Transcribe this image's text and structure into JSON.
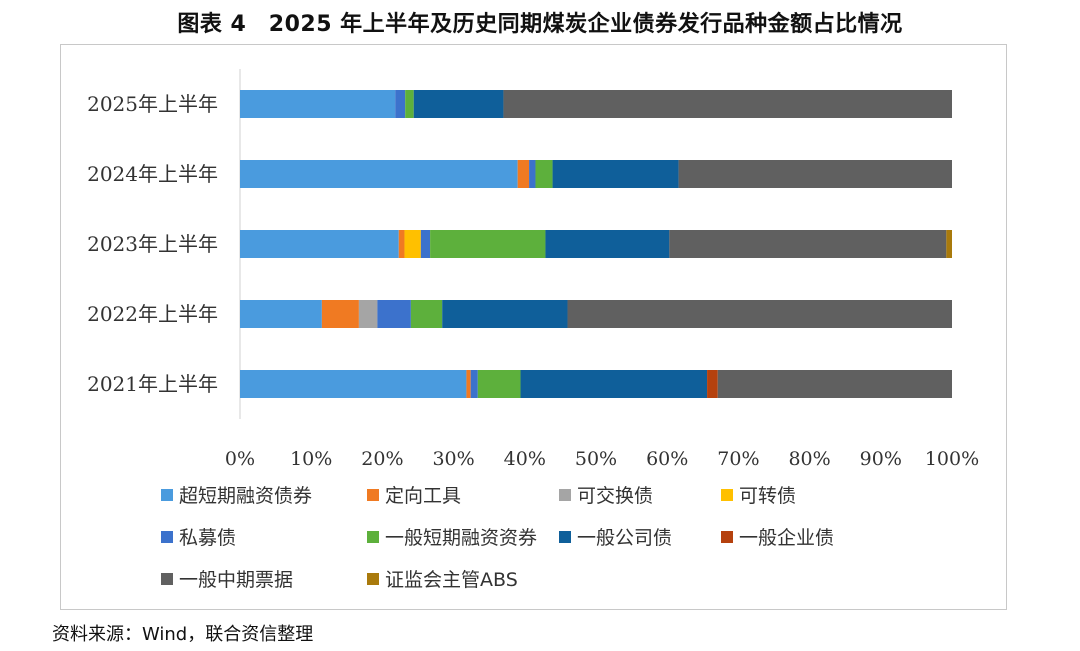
{
  "title": "图表 4　2025 年上半年及历史同期煤炭企业债券发行品种金额占比情况",
  "source": "资料来源：Wind，联合资信整理",
  "chart_data": {
    "type": "bar",
    "orientation": "horizontal",
    "stacked": true,
    "percent_stacked": true,
    "categories": [
      "2025年上半年",
      "2024年上半年",
      "2023年上半年",
      "2022年上半年",
      "2021年上半年"
    ],
    "xlim": [
      0,
      100
    ],
    "x_ticks": [
      "0%",
      "10%",
      "20%",
      "30%",
      "40%",
      "50%",
      "60%",
      "70%",
      "80%",
      "90%",
      "100%"
    ],
    "grid": false,
    "legend_position": "bottom",
    "series": [
      {
        "name": "超短期融资债券",
        "color": "#4A9BDE",
        "values": [
          21.8,
          39.0,
          22.3,
          11.5,
          31.8
        ]
      },
      {
        "name": "定向工具",
        "color": "#F07A22",
        "values": [
          0,
          1.6,
          0.8,
          5.2,
          0.6
        ]
      },
      {
        "name": "可交换债",
        "color": "#A5A5A5",
        "values": [
          0,
          0,
          0,
          2.6,
          0
        ]
      },
      {
        "name": "可转债",
        "color": "#FFC000",
        "values": [
          0,
          0,
          2.3,
          0,
          0
        ]
      },
      {
        "name": "私募债",
        "color": "#3C72CC",
        "values": [
          1.4,
          0.9,
          1.3,
          4.7,
          1.0
        ]
      },
      {
        "name": "一般短期融资资券",
        "color": "#5DB03C",
        "values": [
          1.2,
          2.4,
          16.2,
          4.4,
          6.0
        ]
      },
      {
        "name": "一般公司债",
        "color": "#0F5F9A",
        "values": [
          12.6,
          17.7,
          17.4,
          17.6,
          26.2
        ]
      },
      {
        "name": "一般企业债",
        "color": "#B5410E",
        "values": [
          0,
          0,
          0,
          0,
          1.5
        ]
      },
      {
        "name": "一般中期票据",
        "color": "#606060",
        "values": [
          63.0,
          38.4,
          38.9,
          54.0,
          32.9
        ]
      },
      {
        "name": "证监会主管ABS",
        "color": "#A97A0C",
        "values": [
          0,
          0,
          0.8,
          0,
          0
        ]
      }
    ]
  }
}
